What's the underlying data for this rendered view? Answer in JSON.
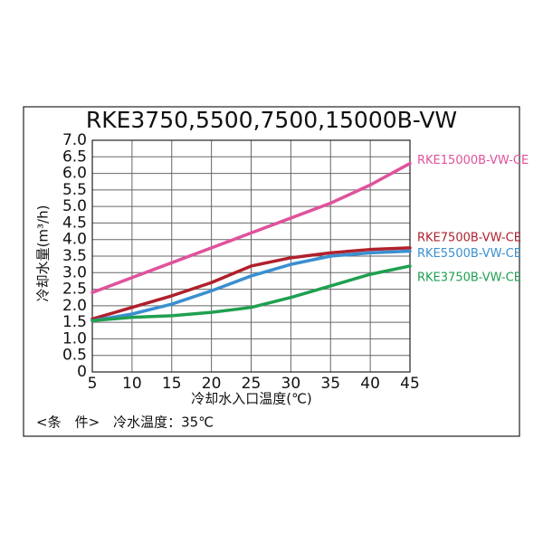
{
  "chart_data": {
    "type": "line",
    "title": "RKE3750,5500,7500,15000B-VW",
    "x_label": "冷却水入口温度(℃)",
    "y_label": "冷却水量(m³/h)",
    "note": "<条　件>　冷水温度：35℃",
    "x": [
      5,
      10,
      15,
      20,
      25,
      30,
      35,
      40,
      45
    ],
    "xlim": [
      5,
      45
    ],
    "xticks": [
      5,
      10,
      15,
      20,
      25,
      30,
      35,
      40,
      45
    ],
    "ylim": [
      0,
      7
    ],
    "yticks": [
      0,
      {
        "value": 0.5,
        "label": "0.5"
      },
      {
        "value": 1,
        "label": "1.0"
      },
      {
        "value": 1.5,
        "label": "1.5"
      },
      {
        "value": 2,
        "label": "2.0"
      },
      {
        "value": 2.5,
        "label": "2.5"
      },
      {
        "value": 3,
        "label": "3.0"
      },
      {
        "value": 3.5,
        "label": "3.5"
      },
      {
        "value": 4,
        "label": "4.0"
      },
      {
        "value": 4.5,
        "label": "4.5"
      },
      {
        "value": 5,
        "label": "5.0"
      },
      {
        "value": 5.5,
        "label": "5.5"
      },
      {
        "value": 6,
        "label": "6.0"
      },
      {
        "value": 6.5,
        "label": "6.5"
      },
      {
        "value": 7,
        "label": "7.0"
      }
    ],
    "grid": true,
    "series": [
      {
        "name": "RKE15000B-VW-CE",
        "color": "#e0529c",
        "values": [
          2.4,
          2.85,
          3.3,
          3.75,
          4.2,
          4.65,
          5.1,
          5.65,
          6.3
        ]
      },
      {
        "name": "RKE7500B-VW-CE",
        "color": "#b0202c",
        "values": [
          1.6,
          1.95,
          2.3,
          2.7,
          3.2,
          3.45,
          3.6,
          3.7,
          3.75
        ]
      },
      {
        "name": "RKE5500B-VW-CE",
        "color": "#3a8fd0",
        "values": [
          1.55,
          1.75,
          2.05,
          2.45,
          2.9,
          3.25,
          3.5,
          3.6,
          3.65
        ]
      },
      {
        "name": "RKE3750B-VW-CE",
        "color": "#1fa050",
        "values": [
          1.55,
          1.65,
          1.7,
          1.8,
          1.95,
          2.25,
          2.6,
          2.95,
          3.2
        ]
      }
    ]
  }
}
